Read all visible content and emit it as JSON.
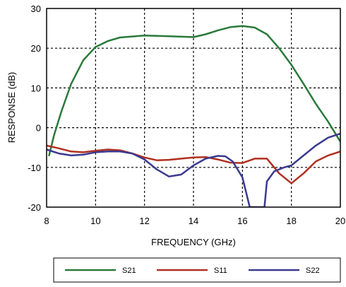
{
  "chart_data": {
    "type": "line",
    "xlabel": "FREQUENCY (GHz)",
    "ylabel": "RESPONSE (dB)",
    "xlim": [
      8,
      20
    ],
    "ylim": [
      -20,
      30
    ],
    "xticks": [
      8,
      10,
      12,
      14,
      16,
      18,
      20
    ],
    "yticks": [
      -20,
      -10,
      0,
      10,
      20,
      30
    ],
    "grid": true,
    "grid_style": "dashed",
    "legend_position": "bottom",
    "series": [
      {
        "name": "S21",
        "color": "#2a7a3a",
        "points": [
          [
            8.1,
            -7
          ],
          [
            8.3,
            -2
          ],
          [
            8.6,
            4
          ],
          [
            9.0,
            11
          ],
          [
            9.5,
            17
          ],
          [
            10.0,
            20.3
          ],
          [
            10.5,
            21.8
          ],
          [
            11.0,
            22.7
          ],
          [
            12.0,
            23.2
          ],
          [
            13.0,
            23.0
          ],
          [
            14.0,
            22.8
          ],
          [
            14.5,
            23.5
          ],
          [
            15.0,
            24.5
          ],
          [
            15.5,
            25.3
          ],
          [
            16.0,
            25.6
          ],
          [
            16.5,
            25.2
          ],
          [
            17.0,
            23.5
          ],
          [
            17.5,
            20.0
          ],
          [
            18.0,
            15.8
          ],
          [
            18.5,
            11.0
          ],
          [
            19.0,
            6.0
          ],
          [
            19.5,
            1.5
          ],
          [
            20.0,
            -3.5
          ]
        ]
      },
      {
        "name": "S11",
        "color": "#b03020",
        "points": [
          [
            8.0,
            -4.5
          ],
          [
            8.5,
            -5.2
          ],
          [
            9.0,
            -6.0
          ],
          [
            9.5,
            -6.2
          ],
          [
            10.0,
            -5.8
          ],
          [
            10.5,
            -5.5
          ],
          [
            11.0,
            -5.7
          ],
          [
            11.5,
            -6.5
          ],
          [
            12.0,
            -7.5
          ],
          [
            12.5,
            -8.2
          ],
          [
            13.0,
            -8.1
          ],
          [
            13.5,
            -7.8
          ],
          [
            14.0,
            -7.5
          ],
          [
            14.5,
            -7.4
          ],
          [
            15.0,
            -8.0
          ],
          [
            15.5,
            -8.8
          ],
          [
            16.0,
            -8.9
          ],
          [
            16.5,
            -7.8
          ],
          [
            17.0,
            -7.8
          ],
          [
            17.5,
            -11.5
          ],
          [
            18.0,
            -14.0
          ],
          [
            18.5,
            -11.5
          ],
          [
            19.0,
            -8.5
          ],
          [
            19.5,
            -7.0
          ],
          [
            20.0,
            -6.0
          ]
        ]
      },
      {
        "name": "S22",
        "color": "#3a3a90",
        "points": [
          [
            8.0,
            -5.5
          ],
          [
            8.5,
            -6.5
          ],
          [
            9.0,
            -7.0
          ],
          [
            9.5,
            -6.8
          ],
          [
            10.0,
            -6.2
          ],
          [
            10.5,
            -6.0
          ],
          [
            11.0,
            -6.0
          ],
          [
            11.5,
            -6.5
          ],
          [
            12.0,
            -8.0
          ],
          [
            12.5,
            -10.5
          ],
          [
            13.0,
            -12.3
          ],
          [
            13.5,
            -11.8
          ],
          [
            14.0,
            -9.5
          ],
          [
            14.5,
            -7.8
          ],
          [
            15.0,
            -7.1
          ],
          [
            15.3,
            -7.2
          ],
          [
            15.6,
            -8.5
          ],
          [
            16.0,
            -12.5
          ],
          [
            16.3,
            -20
          ],
          [
            16.9,
            -20
          ],
          [
            17.0,
            -13.5
          ],
          [
            17.3,
            -11.0
          ],
          [
            17.7,
            -10.0
          ],
          [
            18.0,
            -9.5
          ],
          [
            18.5,
            -7.0
          ],
          [
            19.0,
            -4.5
          ],
          [
            19.5,
            -2.5
          ],
          [
            20.0,
            -1.5
          ]
        ]
      }
    ]
  }
}
